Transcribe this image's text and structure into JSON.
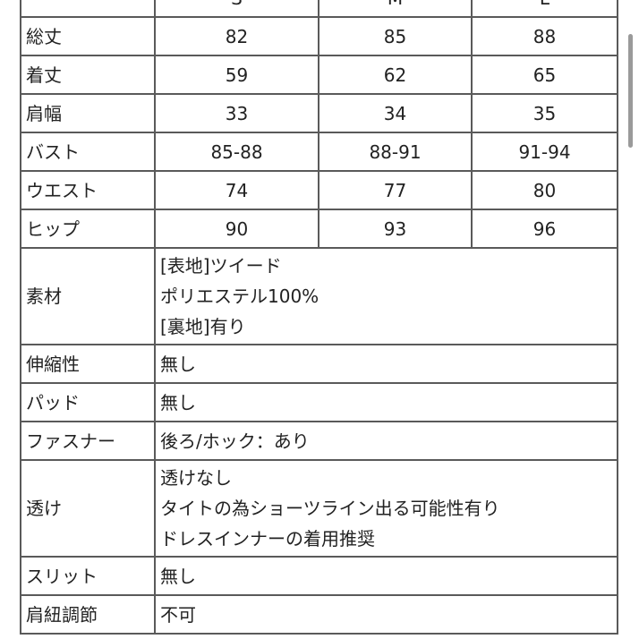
{
  "sizes": [
    "S",
    "M",
    "L"
  ],
  "measure_rows": [
    {
      "label": "総丈",
      "values": [
        "82",
        "85",
        "88"
      ]
    },
    {
      "label": "着丈",
      "values": [
        "59",
        "62",
        "65"
      ]
    },
    {
      "label": "肩幅",
      "values": [
        "33",
        "34",
        "35"
      ]
    },
    {
      "label": "バスト",
      "values": [
        "85-88",
        "88-91",
        "91-94"
      ]
    },
    {
      "label": "ウエスト",
      "values": [
        "74",
        "77",
        "80"
      ]
    },
    {
      "label": "ヒップ",
      "values": [
        "90",
        "93",
        "96"
      ]
    }
  ],
  "detail_rows": [
    {
      "label": "素材",
      "lines": [
        "[表地]ツイード",
        "ポリエステル100%",
        "[裏地]有り"
      ]
    },
    {
      "label": "伸縮性",
      "lines": [
        "無し"
      ]
    },
    {
      "label": "パッド",
      "lines": [
        "無し"
      ]
    },
    {
      "label": "ファスナー",
      "lines": [
        "後ろ/ホック：あり"
      ]
    },
    {
      "label": "透け",
      "lines": [
        "透けなし",
        "タイトの為ショーツライン出る可能性有り",
        "ドレスインナーの着用推奨"
      ]
    },
    {
      "label": "スリット",
      "lines": [
        "無し"
      ]
    },
    {
      "label": "肩紐調節",
      "lines": [
        "不可"
      ]
    }
  ]
}
